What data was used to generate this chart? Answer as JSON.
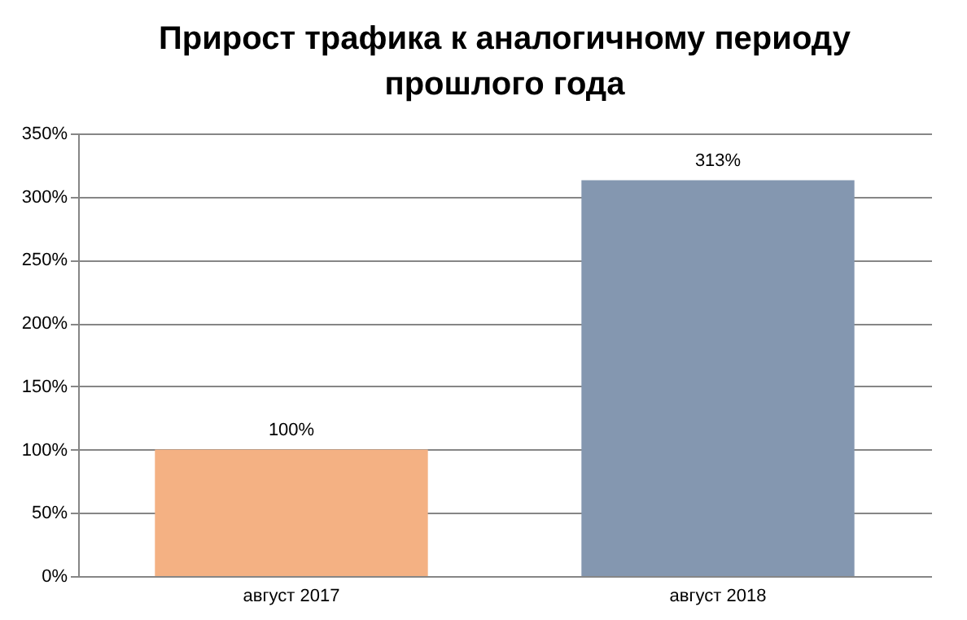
{
  "chart_data": {
    "type": "bar",
    "title": "Прирост трафика к аналогичному периоду\nпрошлого года",
    "categories": [
      "август 2017",
      "август 2018"
    ],
    "values": [
      100,
      313
    ],
    "colors": [
      "#f4b183",
      "#8497b0"
    ],
    "value_labels": [
      "100%",
      "313%"
    ],
    "ylim": [
      0,
      350
    ],
    "yticks": [
      {
        "value": 0,
        "label": "0%"
      },
      {
        "value": 50,
        "label": "50%"
      },
      {
        "value": 100,
        "label": "100%"
      },
      {
        "value": 150,
        "label": "150%"
      },
      {
        "value": 200,
        "label": "200%"
      },
      {
        "value": 250,
        "label": "250%"
      },
      {
        "value": 300,
        "label": "300%"
      },
      {
        "value": 350,
        "label": "350%"
      }
    ],
    "grid": "y"
  }
}
